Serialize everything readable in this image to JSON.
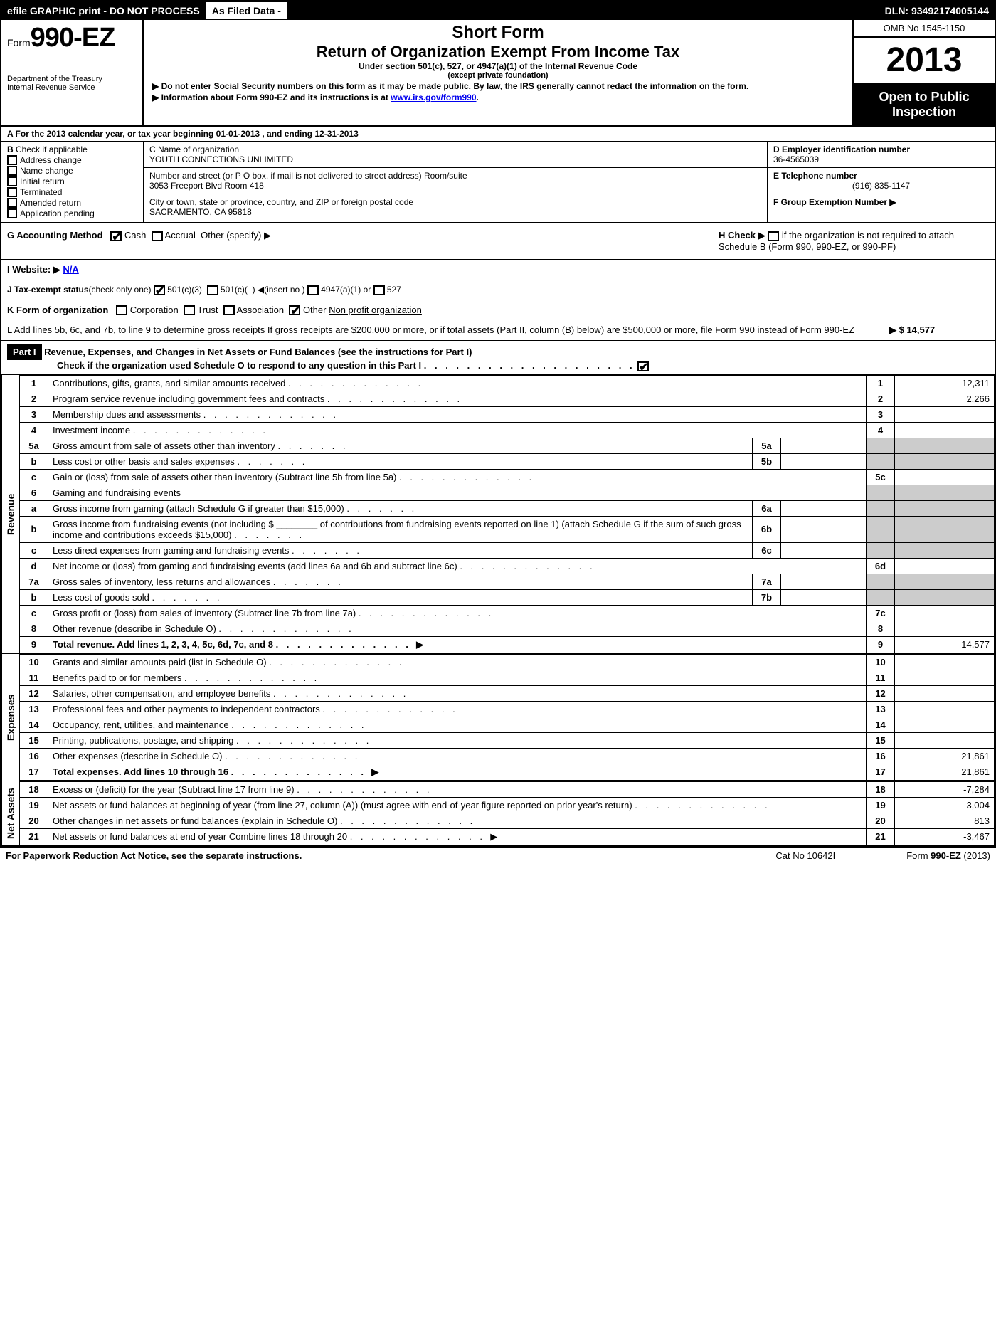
{
  "topbar": {
    "left": "efile GRAPHIC print - DO NOT PROCESS",
    "mid": "As Filed Data -",
    "dln": "DLN: 93492174005144"
  },
  "header": {
    "form_prefix": "Form",
    "form_no": "990-EZ",
    "dept1": "Department of the Treasury",
    "dept2": "Internal Revenue Service",
    "short_form": "Short Form",
    "title": "Return of Organization Exempt From Income Tax",
    "sub1": "Under section 501(c), 527, or 4947(a)(1) of the Internal Revenue Code",
    "sub2": "(except private foundation)",
    "instr1": "▶ Do not enter Social Security numbers on this form as it may be made public. By law, the IRS generally cannot redact the information on the form.",
    "instr2_pre": "▶ Information about Form 990-EZ and its instructions is at ",
    "instr2_link": "www.irs.gov/form990",
    "omb": "OMB No 1545-1150",
    "year": "2013",
    "open1": "Open to Public",
    "open2": "Inspection"
  },
  "rowA": "A  For the 2013 calendar year, or tax year beginning 01-01-2013             , and ending 12-31-2013",
  "colB": {
    "title": "B",
    "sub": "Check if applicable",
    "items": [
      "Address change",
      "Name change",
      "Initial return",
      "Terminated",
      "Amended return",
      "Application pending"
    ]
  },
  "colC": {
    "name_label": "C Name of organization",
    "name": "YOUTH CONNECTIONS UNLIMITED",
    "street_label": "Number and street (or P O box, if mail is not delivered to street address) Room/suite",
    "street": "3053 Freeport Blvd Room 418",
    "city_label": "City or town, state or province, country, and ZIP or foreign postal code",
    "city": "SACRAMENTO, CA 95818"
  },
  "colDE": [
    {
      "label": "D Employer identification number",
      "val": "36-4565039"
    },
    {
      "label": "E Telephone number",
      "val": "(916) 835-1147"
    },
    {
      "label": "F Group Exemption Number    ▶",
      "val": ""
    }
  ],
  "rowG": {
    "left": "G Accounting Method",
    "cash": "Cash",
    "accrual": "Accrual",
    "other": "Other (specify) ▶",
    "h_text": "H  Check ▶",
    "h_rest": "if the organization is not required to attach Schedule B (Form 990, 990-EZ, or 990-PF)"
  },
  "rowI": {
    "label": "I Website: ▶",
    "val": "N/A"
  },
  "rowJ": "J Tax-exempt status(check only one) ☐✔ 501(c)(3) ☐ 501(c)(  ) ◀(insert no )☐ 4947(a)(1) or ☐ 527",
  "rowK": {
    "label": "K Form of organization",
    "opts": [
      "Corporation",
      "Trust",
      "Association"
    ],
    "other": "Other",
    "other_val": "Non profit organization"
  },
  "rowL": {
    "text": "L Add lines 5b, 6c, and 7b, to line 9 to determine gross receipts  If gross receipts are $200,000 or more, or if total assets (Part II, column (B) below) are $500,000 or more, file Form 990 instead of Form 990-EZ",
    "amount": "▶ $ 14,577"
  },
  "partI": {
    "label": "Part I",
    "title": "Revenue, Expenses, and Changes in Net Assets or Fund Balances (see the instructions for Part I)",
    "check": "Check if the organization used Schedule O to respond to any question in this Part I"
  },
  "sections": {
    "revenue": "Revenue",
    "expenses": "Expenses",
    "netassets": "Net Assets"
  },
  "lines": [
    {
      "n": "1",
      "d": "Contributions, gifts, grants, and similar amounts received",
      "ln": "1",
      "v": "12,311"
    },
    {
      "n": "2",
      "d": "Program service revenue including government fees and contracts",
      "ln": "2",
      "v": "2,266"
    },
    {
      "n": "3",
      "d": "Membership dues and assessments",
      "ln": "3",
      "v": ""
    },
    {
      "n": "4",
      "d": "Investment income",
      "ln": "4",
      "v": ""
    },
    {
      "n": "5a",
      "d": "Gross amount from sale of assets other than inventory",
      "sub": "5a"
    },
    {
      "n": "b",
      "d": "Less cost or other basis and sales expenses",
      "sub": "5b"
    },
    {
      "n": "c",
      "d": "Gain or (loss) from sale of assets other than inventory (Subtract line 5b from line 5a)",
      "ln": "5c",
      "v": ""
    },
    {
      "n": "6",
      "d": "Gaming and fundraising events"
    },
    {
      "n": "a",
      "d": "Gross income from gaming (attach Schedule G if greater than $15,000)",
      "sub": "6a"
    },
    {
      "n": "b",
      "d": "Gross income from fundraising events (not including $ ________ of contributions from fundraising events reported on line 1) (attach Schedule G if the sum of such gross income and contributions exceeds $15,000)",
      "sub": "6b"
    },
    {
      "n": "c",
      "d": "Less direct expenses from gaming and fundraising events",
      "sub": "6c"
    },
    {
      "n": "d",
      "d": "Net income or (loss) from gaming and fundraising events (add lines 6a and 6b and subtract line 6c)",
      "ln": "6d",
      "v": ""
    },
    {
      "n": "7a",
      "d": "Gross sales of inventory, less returns and allowances",
      "sub": "7a"
    },
    {
      "n": "b",
      "d": "Less cost of goods sold",
      "sub": "7b"
    },
    {
      "n": "c",
      "d": "Gross profit or (loss) from sales of inventory (Subtract line 7b from line 7a)",
      "ln": "7c",
      "v": ""
    },
    {
      "n": "8",
      "d": "Other revenue (describe in Schedule O)",
      "ln": "8",
      "v": ""
    },
    {
      "n": "9",
      "d": "Total revenue. Add lines 1, 2, 3, 4, 5c, 6d, 7c, and 8",
      "ln": "9",
      "v": "14,577",
      "bold": true,
      "arrow": true
    }
  ],
  "exp_lines": [
    {
      "n": "10",
      "d": "Grants and similar amounts paid (list in Schedule O)",
      "ln": "10",
      "v": ""
    },
    {
      "n": "11",
      "d": "Benefits paid to or for members",
      "ln": "11",
      "v": ""
    },
    {
      "n": "12",
      "d": "Salaries, other compensation, and employee benefits",
      "ln": "12",
      "v": ""
    },
    {
      "n": "13",
      "d": "Professional fees and other payments to independent contractors",
      "ln": "13",
      "v": ""
    },
    {
      "n": "14",
      "d": "Occupancy, rent, utilities, and maintenance",
      "ln": "14",
      "v": ""
    },
    {
      "n": "15",
      "d": "Printing, publications, postage, and shipping",
      "ln": "15",
      "v": ""
    },
    {
      "n": "16",
      "d": "Other expenses (describe in Schedule O)",
      "ln": "16",
      "v": "21,861"
    },
    {
      "n": "17",
      "d": "Total expenses. Add lines 10 through 16",
      "ln": "17",
      "v": "21,861",
      "bold": true,
      "arrow": true
    }
  ],
  "net_lines": [
    {
      "n": "18",
      "d": "Excess or (deficit) for the year (Subtract line 17 from line 9)",
      "ln": "18",
      "v": "-7,284"
    },
    {
      "n": "19",
      "d": "Net assets or fund balances at beginning of year (from line 27, column (A)) (must agree with end-of-year figure reported on prior year's return)",
      "ln": "19",
      "v": "3,004"
    },
    {
      "n": "20",
      "d": "Other changes in net assets or fund balances (explain in Schedule O)",
      "ln": "20",
      "v": "813"
    },
    {
      "n": "21",
      "d": "Net assets or fund balances at end of year Combine lines 18 through 20",
      "ln": "21",
      "v": "-3,467",
      "arrow": true
    }
  ],
  "footer": {
    "left": "For Paperwork Reduction Act Notice, see the separate instructions.",
    "mid": "Cat No 10642I",
    "right": "Form 990-EZ (2013)"
  }
}
